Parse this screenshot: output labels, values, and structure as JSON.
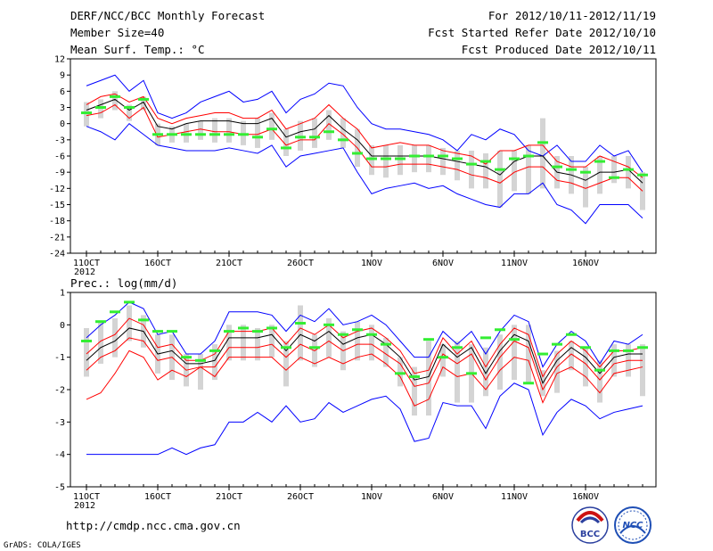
{
  "header": {
    "title": "DERF/NCC/BCC Monthly Forecast",
    "member_size": "Member Size=40",
    "forecast_period": "For 2012/10/11-2012/11/19",
    "fcst_started": "Fcst Started Refer Date 2012/10/10",
    "fcst_produced": "Fcst Produced Date 2012/10/11"
  },
  "footer": {
    "url": "http://cmdp.ncc.cma.gov.cn",
    "credit": "GrADS: COLA/IGES",
    "logo_bcc_text": "BCC",
    "logo_ncc_text": "NCC"
  },
  "colors": {
    "max_min": "#0000ff",
    "spread": "#ff0000",
    "mean": "#000000",
    "median": "#33ee33",
    "box": "#d4d4d4"
  },
  "chart_data": [
    {
      "type": "line",
      "title": "Mean Surf. Temp.: °C",
      "xlabel_year": "2012",
      "x_tick_labels": [
        "11OCT",
        "16OCT",
        "21OCT",
        "26OCT",
        "1NOV",
        "6NOV",
        "11NOV",
        "16NOV"
      ],
      "x_tick_days": [
        1,
        6,
        11,
        16,
        21,
        26,
        31,
        36
      ],
      "ylim": [
        -24,
        12
      ],
      "y_ticks": [
        -24,
        -21,
        -18,
        -15,
        -12,
        -9,
        -6,
        -3,
        0,
        3,
        6,
        9,
        12
      ],
      "days": [
        1,
        2,
        3,
        4,
        5,
        6,
        7,
        8,
        9,
        10,
        11,
        12,
        13,
        14,
        15,
        16,
        17,
        18,
        19,
        20,
        21,
        22,
        23,
        24,
        25,
        26,
        27,
        28,
        29,
        30,
        31,
        32,
        33,
        34,
        35,
        36,
        37,
        38,
        39,
        40
      ],
      "series": [
        {
          "name": "max",
          "values": [
            7,
            8,
            9,
            6,
            8,
            2,
            1,
            2,
            4,
            5,
            6,
            4,
            4.5,
            6,
            2,
            4.5,
            5.5,
            7.5,
            7,
            3,
            0,
            -1,
            -1,
            -1.5,
            -2,
            -3,
            -5,
            -2,
            -3,
            -1,
            -2,
            -5,
            -6,
            -4,
            -7,
            -7,
            -4,
            -6,
            -5,
            -9
          ]
        },
        {
          "name": "spread_upper",
          "values": [
            3.5,
            5,
            5.5,
            4,
            5,
            1,
            0,
            1,
            1.5,
            2,
            2,
            1,
            1,
            2.5,
            -1,
            0,
            1,
            3.5,
            1,
            -1,
            -4.5,
            -4,
            -3.5,
            -4,
            -4,
            -5,
            -5.5,
            -6,
            -7.5,
            -5,
            -5,
            -4,
            -4,
            -7,
            -8,
            -8,
            -6,
            -7,
            -8,
            -10
          ]
        },
        {
          "name": "mean",
          "values": [
            2.5,
            3.5,
            4.5,
            2.5,
            4,
            -0.5,
            -1,
            0,
            0.5,
            0.5,
            0.5,
            0,
            0,
            1,
            -2.5,
            -1.5,
            -1,
            1.5,
            -1,
            -3,
            -6,
            -6,
            -6,
            -6,
            -6,
            -6.5,
            -7,
            -7.5,
            -8,
            -9.5,
            -7,
            -6,
            -6,
            -9,
            -9.5,
            -10.5,
            -9,
            -9,
            -8.5,
            -11
          ]
        },
        {
          "name": "spread_lower",
          "values": [
            1.5,
            2,
            3.5,
            1,
            3,
            -2.5,
            -2,
            -1.5,
            -1,
            -1.5,
            -1.5,
            -2,
            -2,
            -1,
            -4,
            -3,
            -3,
            0,
            -2,
            -4.5,
            -8,
            -8,
            -7.5,
            -7.5,
            -7.5,
            -8,
            -8.5,
            -9.5,
            -10,
            -11,
            -9,
            -8,
            -8,
            -10.5,
            -11,
            -12,
            -11,
            -10,
            -10,
            -12.5
          ]
        },
        {
          "name": "min",
          "values": [
            -0.5,
            -1.5,
            -3,
            0,
            -2,
            -4,
            -4.5,
            -5,
            -5,
            -5,
            -4.5,
            -5,
            -5.5,
            -4,
            -8,
            -6,
            -5.5,
            -5,
            -4.5,
            -9,
            -13,
            -12,
            -11.5,
            -11,
            -12,
            -11.5,
            -13,
            -14,
            -15,
            -15.5,
            -13,
            -13,
            -11,
            -15,
            -16,
            -18.5,
            -15,
            -15,
            -15,
            -17.5
          ]
        },
        {
          "name": "median",
          "values": [
            2,
            3,
            5,
            3,
            4.5,
            -2,
            -2,
            -2,
            -2,
            -2,
            -2,
            -2,
            -2.5,
            -1,
            -4.5,
            -2.5,
            -2.5,
            -1.5,
            -3,
            -5.5,
            -6.5,
            -6.5,
            -6.5,
            -6,
            -6,
            -6,
            -6.5,
            -7.5,
            -7,
            -8.5,
            -6.5,
            -6,
            -3.5,
            -8,
            -8.5,
            -9,
            -7,
            -10,
            -8.5,
            -9.5
          ]
        },
        {
          "name": "box_upper",
          "values": [
            4,
            4.5,
            6,
            3.5,
            5,
            0,
            -0.5,
            0,
            0.5,
            1,
            1,
            0.5,
            1,
            2,
            -1,
            0.5,
            1,
            2.5,
            1,
            -1,
            -4,
            -4,
            -4,
            -4,
            -4,
            -4.5,
            -5,
            -5,
            -5.5,
            -5,
            -5,
            -4,
            1,
            -6,
            -6,
            -8,
            -6,
            -6,
            -6,
            -9
          ]
        },
        {
          "name": "box_lower",
          "values": [
            -0.5,
            1,
            2.5,
            0.5,
            2.5,
            -4,
            -3.5,
            -3.5,
            -3,
            -3.5,
            -3.5,
            -4,
            -4.5,
            -3,
            -6,
            -5,
            -4.5,
            -3,
            -4.5,
            -8,
            -9.5,
            -10,
            -9.5,
            -9,
            -9,
            -9.5,
            -10.5,
            -12,
            -12,
            -15.5,
            -12.5,
            -13,
            -12,
            -12,
            -13,
            -15.5,
            -13,
            -11,
            -12,
            -16
          ]
        }
      ]
    },
    {
      "type": "line",
      "title": "Prec.: log(mm/d)",
      "xlabel_year": "2012",
      "x_tick_labels": [
        "11OCT",
        "16OCT",
        "21OCT",
        "26OCT",
        "1NOV",
        "6NOV",
        "11NOV",
        "16NOV"
      ],
      "x_tick_days": [
        1,
        6,
        11,
        16,
        21,
        26,
        31,
        36
      ],
      "ylim": [
        -5,
        1
      ],
      "y_ticks": [
        -5,
        -4,
        -3,
        -2,
        -1,
        0,
        1
      ],
      "days": [
        1,
        2,
        3,
        4,
        5,
        6,
        7,
        8,
        9,
        10,
        11,
        12,
        13,
        14,
        15,
        16,
        17,
        18,
        19,
        20,
        21,
        22,
        23,
        24,
        25,
        26,
        27,
        28,
        29,
        30,
        31,
        32,
        33,
        34,
        35,
        36,
        37,
        38,
        39,
        40
      ],
      "series": [
        {
          "name": "max",
          "values": [
            -0.4,
            0,
            0.3,
            0.7,
            0.5,
            -0.3,
            -0.2,
            -0.9,
            -0.9,
            -0.5,
            0.4,
            0.4,
            0.4,
            0.3,
            -0.2,
            0.3,
            0.1,
            0.5,
            0,
            0.1,
            0.3,
            0,
            -0.5,
            -1,
            -1,
            -0.2,
            -0.6,
            -0.2,
            -0.9,
            -0.2,
            0.3,
            0.1,
            -1.3,
            -0.6,
            -0.2,
            -0.5,
            -1.2,
            -0.5,
            -0.6,
            -0.3
          ]
        },
        {
          "name": "spread_upper",
          "values": [
            -0.9,
            -0.5,
            -0.3,
            0.2,
            0,
            -0.7,
            -0.6,
            -1.1,
            -1.1,
            -0.9,
            -0.2,
            -0.2,
            -0.2,
            -0.1,
            -0.6,
            -0.1,
            -0.3,
            0,
            -0.4,
            -0.2,
            -0.1,
            -0.4,
            -0.8,
            -1.5,
            -1.4,
            -0.4,
            -0.9,
            -0.5,
            -1.3,
            -0.6,
            -0.1,
            -0.3,
            -1.6,
            -0.9,
            -0.5,
            -0.8,
            -1.3,
            -0.8,
            -0.8,
            -0.7
          ]
        },
        {
          "name": "mean",
          "values": [
            -1.1,
            -0.7,
            -0.5,
            -0.1,
            -0.2,
            -0.9,
            -0.8,
            -1.2,
            -1.2,
            -1.1,
            -0.4,
            -0.4,
            -0.4,
            -0.3,
            -0.8,
            -0.3,
            -0.5,
            -0.2,
            -0.6,
            -0.4,
            -0.3,
            -0.6,
            -1,
            -1.7,
            -1.6,
            -0.6,
            -1,
            -0.7,
            -1.5,
            -0.8,
            -0.3,
            -0.5,
            -1.8,
            -1.1,
            -0.7,
            -1,
            -1.5,
            -1,
            -0.9,
            -0.9
          ]
        },
        {
          "name": "spread_lower",
          "values": [
            -1.4,
            -1,
            -0.8,
            -0.4,
            -0.5,
            -1.1,
            -1,
            -1.4,
            -1.3,
            -1.3,
            -0.7,
            -0.7,
            -0.7,
            -0.6,
            -1,
            -0.6,
            -0.8,
            -0.5,
            -0.8,
            -0.6,
            -0.6,
            -0.9,
            -1.2,
            -1.9,
            -1.8,
            -0.9,
            -1.2,
            -0.9,
            -1.7,
            -1,
            -0.5,
            -0.7,
            -2,
            -1.3,
            -0.9,
            -1.2,
            -1.7,
            -1.2,
            -1.1,
            -1.1
          ]
        },
        {
          "name": "lower_red",
          "values": [
            -2.3,
            -2.1,
            -1.5,
            -0.8,
            -1,
            -1.7,
            -1.4,
            -1.6,
            -1.3,
            -1.6,
            -1,
            -1,
            -1,
            -1,
            -1.4,
            -1,
            -1.2,
            -1,
            -1.2,
            -1,
            -0.9,
            -1.2,
            -1.6,
            -2.5,
            -2.3,
            -1.3,
            -1.6,
            -1.5,
            -2,
            -1.4,
            -1,
            -1.1,
            -2.4,
            -1.5,
            -1.3,
            -1.6,
            -2.1,
            -1.5,
            -1.4,
            -1.3
          ]
        },
        {
          "name": "min",
          "values": [
            -4,
            -4,
            -4,
            -4,
            -4,
            -4,
            -3.8,
            -4,
            -3.8,
            -3.7,
            -3,
            -3,
            -2.7,
            -3,
            -2.5,
            -3,
            -2.9,
            -2.4,
            -2.7,
            -2.5,
            -2.3,
            -2.2,
            -2.6,
            -3.6,
            -3.5,
            -2.4,
            -2.5,
            -2.5,
            -3.2,
            -2.2,
            -1.8,
            -2,
            -3.4,
            -2.7,
            -2.3,
            -2.5,
            -2.9,
            -2.7,
            -2.6,
            -2.5
          ]
        },
        {
          "name": "median",
          "values": [
            -0.5,
            0.1,
            0.4,
            0.7,
            0.15,
            -0.2,
            -0.2,
            -1,
            -1.1,
            -0.8,
            -0.2,
            -0.1,
            -0.2,
            -0.1,
            -0.7,
            0.05,
            -0.7,
            0,
            -0.3,
            -0.15,
            -0.3,
            -0.6,
            -1.5,
            -1.6,
            -0.45,
            -1,
            -0.7,
            -1.5,
            -0.4,
            -0.15,
            -0.45,
            -1.8,
            -0.9,
            -0.6,
            -0.3,
            -0.7,
            -1.4,
            -0.8,
            -0.8,
            -0.7
          ]
        },
        {
          "name": "box_upper",
          "values": [
            -0.1,
            0.1,
            0.2,
            0.6,
            0.3,
            -0.3,
            -0.3,
            -0.9,
            -0.9,
            -0.6,
            0,
            0,
            -0.1,
            0,
            -0.5,
            0.6,
            -0.3,
            0.2,
            -0.2,
            0.1,
            0,
            -0.4,
            -1,
            -1.3,
            -0.5,
            -0.6,
            -0.5,
            -0.6,
            -0.7,
            -0.3,
            0,
            0,
            -1.4,
            -0.8,
            -0.5,
            -0.7,
            -1.1,
            -0.6,
            -0.6,
            -0.6
          ]
        },
        {
          "name": "box_lower",
          "values": [
            -1.6,
            -1.2,
            -1,
            -0.5,
            -0.7,
            -1.5,
            -1.7,
            -1.9,
            -2,
            -1.7,
            -1.1,
            -1.1,
            -1.1,
            -1,
            -1.9,
            -1.1,
            -1.3,
            -1,
            -1.4,
            -1.1,
            -1.1,
            -1.3,
            -1.9,
            -2.8,
            -2.8,
            -1.6,
            -2.4,
            -2.4,
            -2.2,
            -2,
            -1.7,
            -1.8,
            -2.2,
            -2.1,
            -1.4,
            -1.9,
            -2.4,
            -1.6,
            -1.6,
            -2.2
          ]
        }
      ]
    }
  ]
}
